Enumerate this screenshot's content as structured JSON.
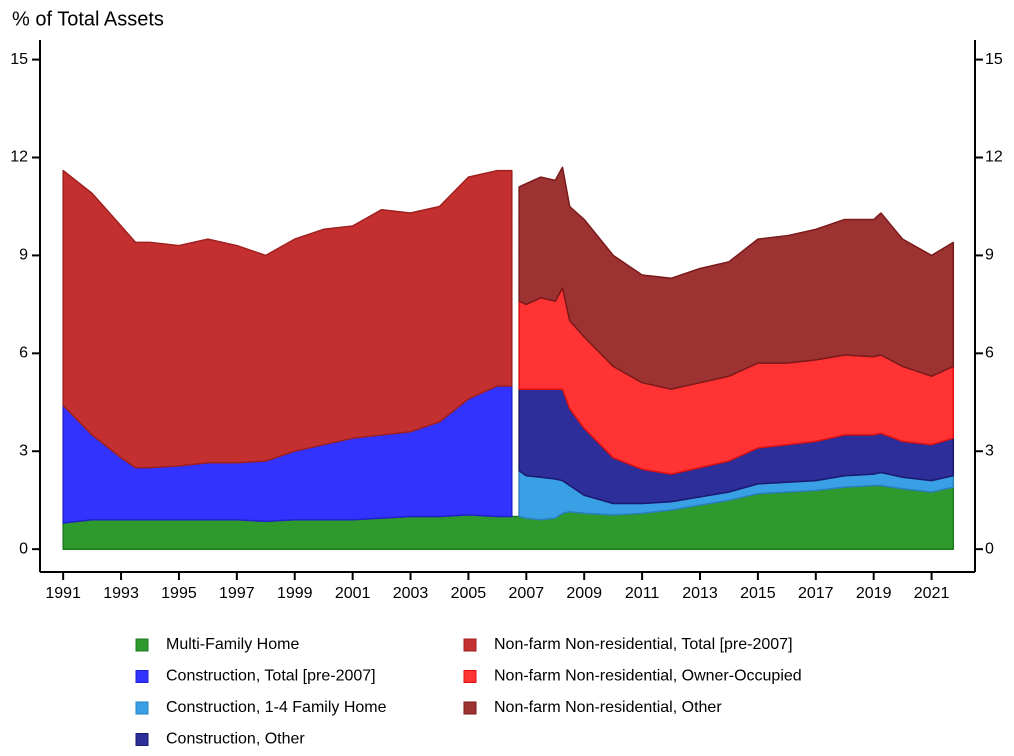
{
  "chart_data": {
    "type": "stacked_area",
    "title": "% of Total Assets",
    "x": [
      1991,
      1992,
      1993,
      1993.5,
      1994,
      1995,
      1996,
      1997,
      1998,
      1999,
      2000,
      2001,
      2002,
      2003,
      2004,
      2005,
      2006,
      2006.5,
      2006.75,
      2007,
      2007.5,
      2008,
      2008.25,
      2008.5,
      2009,
      2010,
      2011,
      2012,
      2013,
      2014,
      2015,
      2016,
      2017,
      2018,
      2019,
      2019.25,
      2020,
      2021,
      2021.75
    ],
    "xlim": [
      1990.2,
      2022.5
    ],
    "xticks": [
      1991,
      1993,
      1995,
      1997,
      1999,
      2001,
      2003,
      2005,
      2007,
      2009,
      2011,
      2013,
      2015,
      2017,
      2019,
      2021
    ],
    "ylim": [
      -0.7,
      15.6
    ],
    "yticks": [
      0,
      3,
      6,
      9,
      12,
      15
    ],
    "y2lim": [
      -0.7,
      15.6
    ],
    "y2ticks": [
      0,
      3,
      6,
      9,
      12,
      15
    ],
    "series": [
      {
        "name": "Multi-Family Home",
        "color": "#2e9a2e",
        "edge": "#1e7a1e",
        "values": [
          0.8,
          0.9,
          0.9,
          0.9,
          0.9,
          0.9,
          0.9,
          0.9,
          0.85,
          0.9,
          0.9,
          0.9,
          0.95,
          1.0,
          1.0,
          1.05,
          1.0,
          1.0,
          1.0,
          0.95,
          0.9,
          0.95,
          1.1,
          1.15,
          1.1,
          1.05,
          1.1,
          1.2,
          1.35,
          1.5,
          1.7,
          1.75,
          1.8,
          1.9,
          1.95,
          1.95,
          1.85,
          1.75,
          1.9
        ]
      },
      {
        "name": "Construction, Total [pre-2007]",
        "color": "#3333ff",
        "edge": "#2222cc",
        "values": [
          3.6,
          2.6,
          1.9,
          1.6,
          1.6,
          1.65,
          1.75,
          1.75,
          1.85,
          2.1,
          2.3,
          2.5,
          2.55,
          2.6,
          2.9,
          3.55,
          4.0,
          4.0,
          null,
          null,
          null,
          null,
          null,
          null,
          null,
          null,
          null,
          null,
          null,
          null,
          null,
          null,
          null,
          null,
          null,
          null,
          null,
          null,
          null
        ]
      },
      {
        "name": "Construction, 1-4 Family Home",
        "color": "#3aa0e6",
        "edge": "#2a80c0",
        "values": [
          null,
          null,
          null,
          null,
          null,
          null,
          null,
          null,
          null,
          null,
          null,
          null,
          null,
          null,
          null,
          null,
          null,
          null,
          1.4,
          1.3,
          1.3,
          1.2,
          1.0,
          0.8,
          0.55,
          0.35,
          0.3,
          0.25,
          0.25,
          0.25,
          0.3,
          0.3,
          0.3,
          0.35,
          0.35,
          0.4,
          0.35,
          0.35,
          0.35
        ]
      },
      {
        "name": "Construction, Other",
        "color": "#2e2e9a",
        "edge": "#1a1a70",
        "values": [
          null,
          null,
          null,
          null,
          null,
          null,
          null,
          null,
          null,
          null,
          null,
          null,
          null,
          null,
          null,
          null,
          null,
          null,
          2.5,
          2.65,
          2.7,
          2.75,
          2.8,
          2.35,
          2.05,
          1.4,
          1.05,
          0.85,
          0.9,
          0.95,
          1.1,
          1.15,
          1.2,
          1.25,
          1.2,
          1.2,
          1.1,
          1.1,
          1.15
        ]
      },
      {
        "name": "Non-farm Non-residential, Total [pre-2007]",
        "color": "#c43030",
        "edge": "#a02020",
        "values": [
          7.2,
          7.4,
          7.1,
          6.9,
          6.9,
          6.75,
          6.85,
          6.65,
          6.3,
          6.5,
          6.6,
          6.5,
          6.9,
          6.7,
          6.6,
          6.8,
          6.6,
          6.6,
          null,
          null,
          null,
          null,
          null,
          null,
          null,
          null,
          null,
          null,
          null,
          null,
          null,
          null,
          null,
          null,
          null,
          null,
          null,
          null,
          null
        ]
      },
      {
        "name": "Non-farm Non-residential, Owner-Occupied",
        "color": "#ff3333",
        "edge": "#dd1111",
        "values": [
          null,
          null,
          null,
          null,
          null,
          null,
          null,
          null,
          null,
          null,
          null,
          null,
          null,
          null,
          null,
          null,
          null,
          null,
          2.7,
          2.6,
          2.8,
          2.7,
          3.1,
          2.7,
          2.8,
          2.8,
          2.65,
          2.6,
          2.6,
          2.6,
          2.6,
          2.5,
          2.5,
          2.45,
          2.4,
          2.4,
          2.3,
          2.1,
          2.2
        ]
      },
      {
        "name": "Non-farm Non-residential, Other",
        "color": "#9c3232",
        "edge": "#7a1a1a",
        "values": [
          null,
          null,
          null,
          null,
          null,
          null,
          null,
          null,
          null,
          null,
          null,
          null,
          null,
          null,
          null,
          null,
          null,
          null,
          3.5,
          3.7,
          3.7,
          3.7,
          3.7,
          3.5,
          3.6,
          3.4,
          3.3,
          3.4,
          3.5,
          3.5,
          3.8,
          3.9,
          4.0,
          4.15,
          4.2,
          4.35,
          3.9,
          3.7,
          3.8
        ]
      }
    ]
  }
}
